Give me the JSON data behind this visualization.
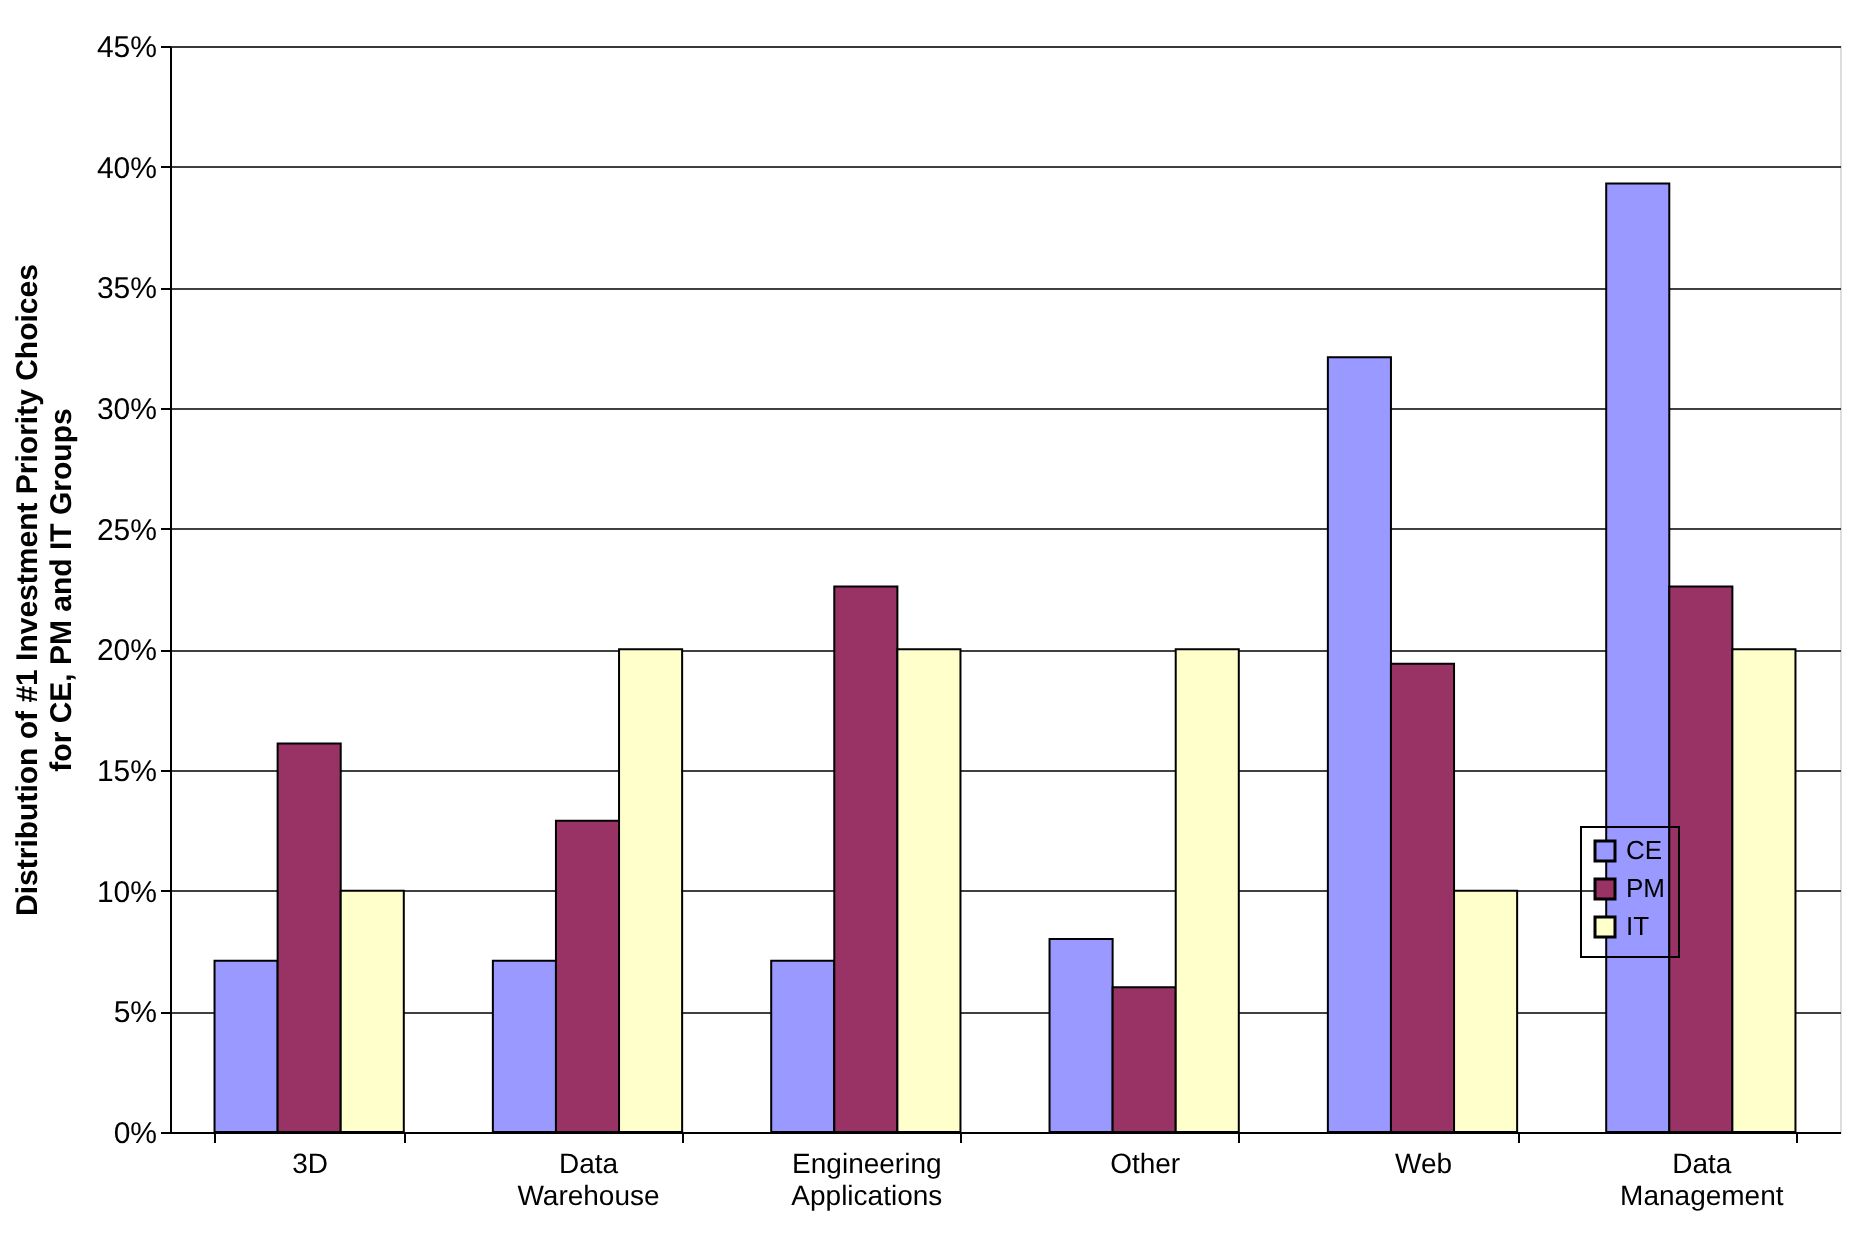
{
  "chart_data": {
    "type": "bar",
    "ylabel": "Distribution of #1 Investment Priority Choices\nfor CE, PM and IT Groups",
    "categories": [
      "3D",
      "Data Warehouse",
      "Engineering Applications",
      "Other",
      "Web",
      "Data Management"
    ],
    "series": [
      {
        "name": "CE",
        "color": "#9999ff",
        "values": [
          7.1,
          7.1,
          7.1,
          8,
          32.1,
          39.3
        ]
      },
      {
        "name": "PM",
        "color": "#993366",
        "values": [
          16.1,
          12.9,
          22.6,
          6,
          19.4,
          22.6
        ]
      },
      {
        "name": "IT",
        "color": "#ffffcc",
        "values": [
          10,
          20,
          20,
          20,
          10,
          20
        ]
      }
    ],
    "ylim": [
      0,
      45
    ],
    "yticks": [
      {
        "value": 0,
        "label": "0%"
      },
      {
        "value": 5,
        "label": "5%"
      },
      {
        "value": 10,
        "label": "10%"
      },
      {
        "value": 15,
        "label": "15%"
      },
      {
        "value": 20,
        "label": "20%"
      },
      {
        "value": 25,
        "label": "25%"
      },
      {
        "value": 30,
        "label": "30%"
      },
      {
        "value": 35,
        "label": "35%"
      },
      {
        "value": 40,
        "label": "40%"
      },
      {
        "value": 45,
        "label": "45%"
      }
    ],
    "grid": "y",
    "legend": "right"
  }
}
